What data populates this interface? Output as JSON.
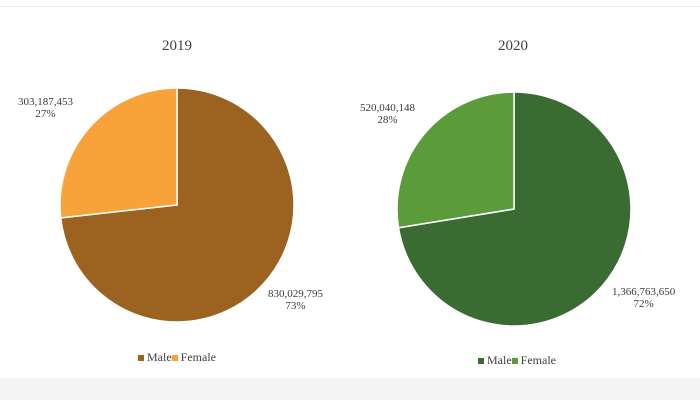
{
  "chart_data": [
    {
      "type": "pie",
      "title": "2019",
      "slices": [
        {
          "name": "Male",
          "value": 830029795,
          "value_label": "830,029,795",
          "percent_label": "73%",
          "color": "#9b6220"
        },
        {
          "name": "Female",
          "value": 303187453,
          "value_label": "303,187,453",
          "percent_label": "27%",
          "color": "#f7a33a"
        }
      ],
      "legend": {
        "position": "bottom",
        "items": [
          "Male",
          "Female"
        ]
      }
    },
    {
      "type": "pie",
      "title": "2020",
      "slices": [
        {
          "name": "Male",
          "value": 1366763650,
          "value_label": "1,366,763,650",
          "percent_label": "72%",
          "color": "#3a6b33"
        },
        {
          "name": "Female",
          "value": 520040148,
          "value_label": "520,040,148",
          "percent_label": "28%",
          "color": "#5b9b3a"
        }
      ],
      "legend": {
        "position": "bottom",
        "items": [
          "Male",
          "Female"
        ]
      }
    }
  ]
}
